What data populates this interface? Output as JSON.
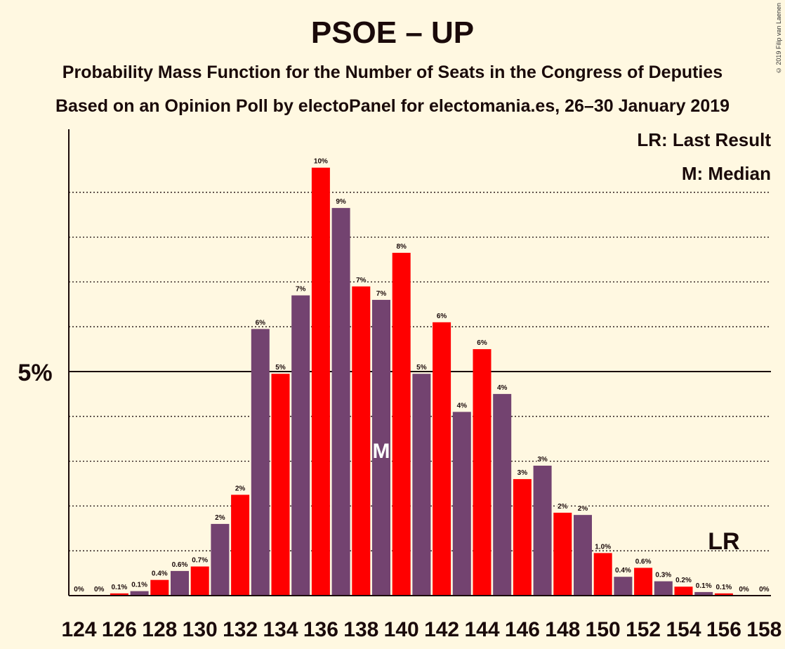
{
  "chart_data": {
    "type": "bar",
    "title": "PSOE – UP",
    "subtitle_1": "Probability Mass Function for the Number of Seats in the Congress of Deputies",
    "subtitle_2": "Based on an Opinion Poll by electoPanel for electomania.es, 26–30 January 2019",
    "copyright": "© 2019 Filip van Laenen",
    "legend": {
      "last_result": "LR: Last Result",
      "median": "M: Median"
    },
    "y_label_5": "5%",
    "ylim": [
      0,
      10.5
    ],
    "x_tick_labels": [
      "124",
      "126",
      "128",
      "130",
      "132",
      "134",
      "136",
      "138",
      "140",
      "142",
      "144",
      "146",
      "148",
      "150",
      "152",
      "154",
      "156",
      "158"
    ],
    "seats": [
      124,
      125,
      126,
      127,
      128,
      129,
      130,
      131,
      132,
      133,
      134,
      135,
      136,
      137,
      138,
      139,
      140,
      141,
      142,
      143,
      144,
      145,
      146,
      147,
      148,
      149,
      150,
      151,
      152,
      153,
      154,
      155,
      156,
      157,
      158
    ],
    "values": [
      0,
      0,
      0.05,
      0.1,
      0.35,
      0.55,
      0.65,
      1.6,
      2.25,
      5.95,
      4.95,
      6.7,
      9.55,
      8.65,
      6.9,
      6.6,
      7.65,
      4.95,
      6.1,
      4.1,
      5.5,
      4.5,
      2.6,
      2.9,
      1.85,
      1.8,
      0.95,
      0.42,
      0.62,
      0.32,
      0.2,
      0.08,
      0.05,
      0,
      0
    ],
    "labels": [
      "0%",
      "0%",
      "0.1%",
      "0.1%",
      "0.4%",
      "0.6%",
      "0.7%",
      "2%",
      "2%",
      "6%",
      "5%",
      "7%",
      "10%",
      "9%",
      "7%",
      "7%",
      "8%",
      "5%",
      "6%",
      "4%",
      "6%",
      "4%",
      "3%",
      "3%",
      "2%",
      "2%",
      "1.0%",
      "0.4%",
      "0.6%",
      "0.3%",
      "0.2%",
      "0.1%",
      "0.1%",
      "0%",
      "0%"
    ],
    "median_seat": 139,
    "median_label": "M",
    "last_result_seat": 156,
    "last_result_label": "LR",
    "colors": {
      "red": "#ff0000",
      "purple": "#734370",
      "background": "#fff8e1"
    }
  }
}
